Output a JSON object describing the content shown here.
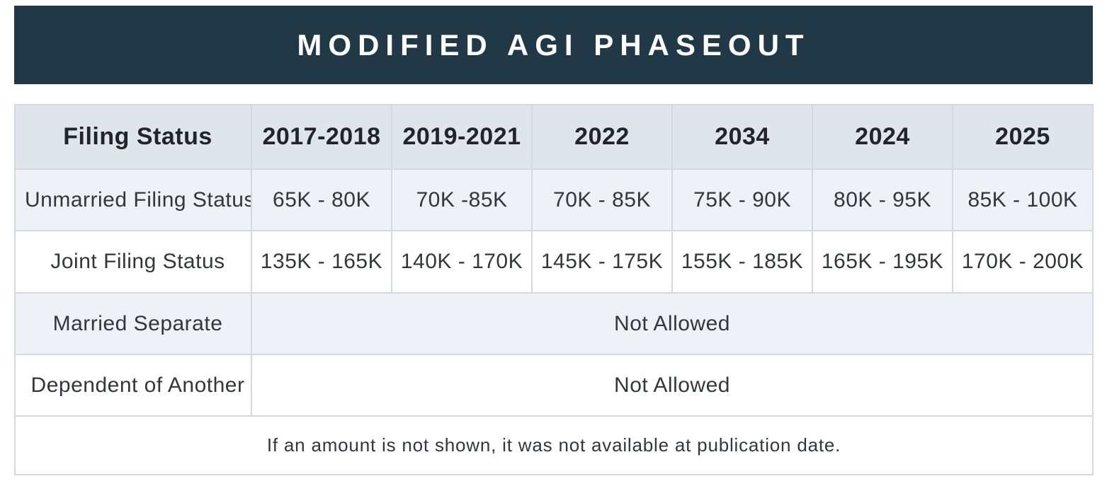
{
  "title": "MODIFIED AGI PHASEOUT",
  "chart_data": {
    "type": "table",
    "title": "MODIFIED AGI PHASEOUT",
    "columns": [
      "Filing Status",
      "2017-2018",
      "2019-2021",
      "2022",
      "2034",
      "2024",
      "2025"
    ],
    "rows": [
      {
        "label": "Unmarried Filing Status",
        "values": [
          "65K - 80K",
          "70K -85K",
          "70K - 85K",
          "75K - 90K",
          "80K - 95K",
          "85K - 100K"
        ]
      },
      {
        "label": "Joint Filing Status",
        "values": [
          "135K - 165K",
          "140K - 170K",
          "145K - 175K",
          "155K - 185K",
          "165K - 195K",
          "170K - 200K"
        ]
      },
      {
        "label": "Married Separate",
        "merged_value": "Not Allowed"
      },
      {
        "label": "Dependent of Another",
        "merged_value": "Not Allowed"
      }
    ],
    "footnote": "If an amount is not shown, it was not available at publication date."
  },
  "colors": {
    "banner_bg": "#213846",
    "banner_text": "#fdfdfd",
    "header_row_bg": "#dfe5ea",
    "alt_row_bg": "#eef1f5",
    "row_bg": "#ffffff",
    "border": "#d3d9df",
    "header_text": "#212529",
    "body_text": "#31373c"
  }
}
